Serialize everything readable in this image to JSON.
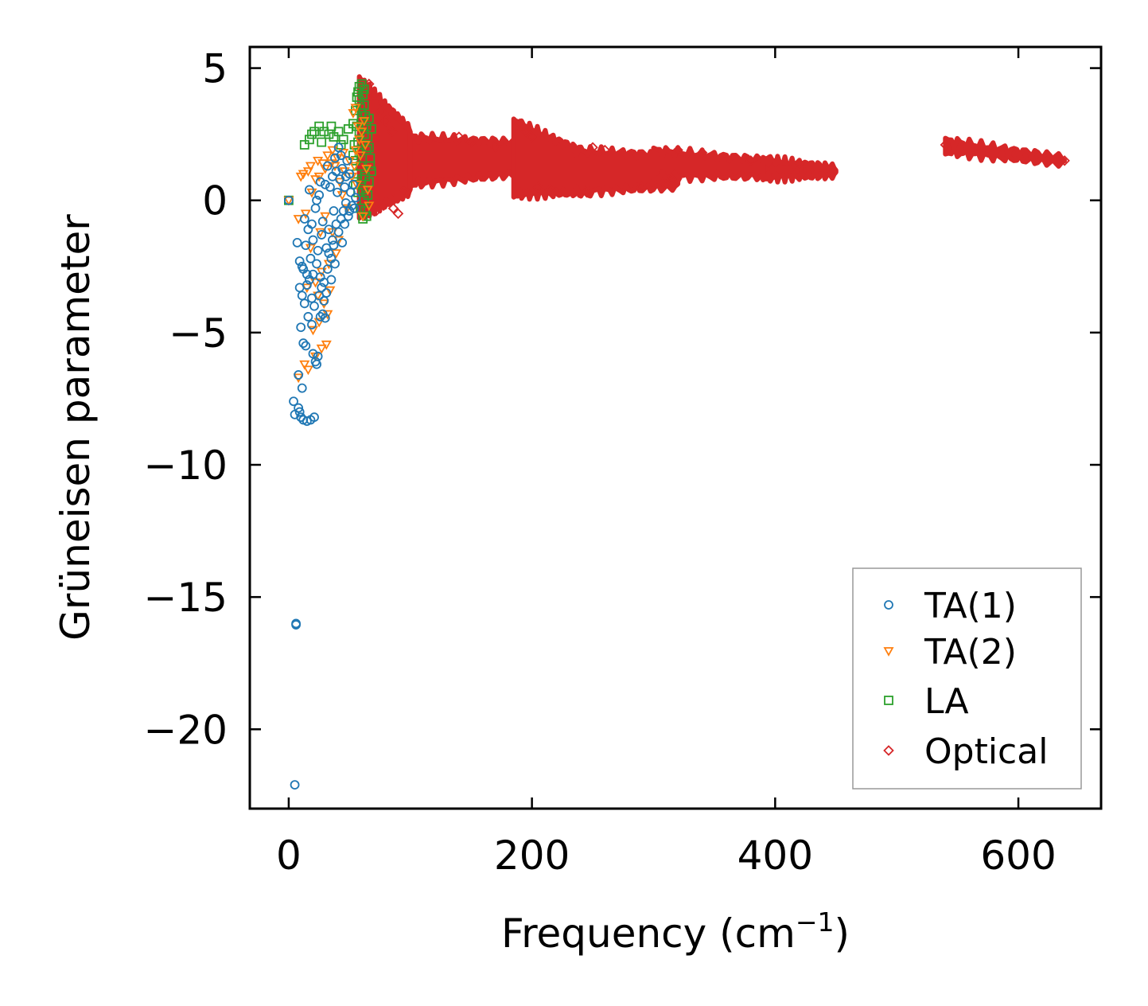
{
  "chart_data": {
    "type": "scatter",
    "title": "",
    "xlabel": "Frequency (cm",
    "xlabel_sup": "−1",
    "xlabel_end": ")",
    "ylabel": "Grüneisen parameter",
    "xlim": [
      -32,
      668
    ],
    "ylim": [
      -23.0,
      5.8
    ],
    "xticks": [
      0,
      200,
      400,
      600
    ],
    "xtick_labels": [
      "0",
      "200",
      "400",
      "600"
    ],
    "yticks": [
      5,
      0,
      -5,
      -10,
      -15,
      -20
    ],
    "ytick_labels": [
      "5",
      "0",
      "−5",
      "−10",
      "−15",
      "−20"
    ],
    "grid": false,
    "legend_position": "lower-right",
    "series": [
      {
        "name": "TA(1)",
        "marker": "circle",
        "color": "#1f77b4",
        "points": [
          [
            0,
            0
          ],
          [
            5,
            -22.1
          ],
          [
            6,
            -16
          ],
          [
            6,
            -16.05
          ],
          [
            4,
            -7.6
          ],
          [
            5,
            -8.1
          ],
          [
            8,
            -6.6
          ],
          [
            9,
            -8.0
          ],
          [
            10,
            -8.2
          ],
          [
            12,
            -8.3
          ],
          [
            15,
            -8.35
          ],
          [
            18,
            -8.3
          ],
          [
            21,
            -8.2
          ],
          [
            11,
            -7.1
          ],
          [
            8,
            -7.85
          ],
          [
            10,
            -4.8
          ],
          [
            12,
            -5.4
          ],
          [
            14,
            -5.5
          ],
          [
            16,
            -4.4
          ],
          [
            19,
            -4.7
          ],
          [
            20,
            -5.8
          ],
          [
            22,
            -6.1
          ],
          [
            23,
            -6.2
          ],
          [
            24,
            -5.9
          ],
          [
            26,
            -4.4
          ],
          [
            28,
            -4.3
          ],
          [
            30,
            -4.45
          ],
          [
            9,
            -3.3
          ],
          [
            11,
            -3.6
          ],
          [
            13,
            -3.9
          ],
          [
            15,
            -3.2
          ],
          [
            17,
            -3.0
          ],
          [
            19,
            -3.7
          ],
          [
            21,
            -4.0
          ],
          [
            25,
            -3.6
          ],
          [
            27,
            -3.3
          ],
          [
            7,
            -1.6
          ],
          [
            9,
            -2.3
          ],
          [
            12,
            -2.6
          ],
          [
            14,
            -1.7
          ],
          [
            16,
            -1.1
          ],
          [
            18,
            -2.2
          ],
          [
            20,
            -2.8
          ],
          [
            23,
            -2.4
          ],
          [
            26,
            -2.9
          ],
          [
            29,
            -3.1
          ],
          [
            32,
            -2.6
          ],
          [
            35,
            -2.2
          ],
          [
            38,
            -2.4
          ],
          [
            31,
            -1.8
          ],
          [
            33,
            -1.1
          ],
          [
            36,
            -1.5
          ],
          [
            39,
            -0.9
          ],
          [
            41,
            -1.2
          ],
          [
            43,
            -0.7
          ],
          [
            45,
            -0.4
          ],
          [
            47,
            -0.1
          ],
          [
            49,
            -0.6
          ],
          [
            51,
            0.3
          ],
          [
            52,
            -0.2
          ],
          [
            37,
            -0.4
          ],
          [
            40,
            0.3
          ],
          [
            42,
            0.8
          ],
          [
            44,
            1.2
          ],
          [
            46,
            0.5
          ],
          [
            48,
            1.5
          ],
          [
            50,
            1.0
          ],
          [
            53,
            0.6
          ],
          [
            55,
            0.1
          ],
          [
            34,
            0.5
          ],
          [
            38,
            1.6
          ],
          [
            41,
            2.0
          ],
          [
            43,
            1.7
          ],
          [
            22,
            -0.3
          ],
          [
            25,
            0.2
          ],
          [
            28,
            -0.8
          ],
          [
            30,
            0.6
          ],
          [
            17,
            0.4
          ],
          [
            20,
            -1.5
          ],
          [
            24,
            -1.9
          ],
          [
            27,
            -1.3
          ],
          [
            44,
            -1.6
          ],
          [
            46,
            -0.9
          ],
          [
            33,
            -2.0
          ],
          [
            35,
            -3.0
          ],
          [
            29,
            -3.8
          ],
          [
            31,
            -3.5
          ],
          [
            36,
            0.9
          ],
          [
            39,
            1.1
          ],
          [
            47,
            0.9
          ],
          [
            50,
            -0.4
          ],
          [
            54,
            -0.3
          ],
          [
            19,
            -0.9
          ],
          [
            23,
            0.0
          ],
          [
            26,
            0.7
          ],
          [
            32,
            1.3
          ],
          [
            13,
            -0.7
          ],
          [
            11,
            -2.5
          ],
          [
            15,
            -2.8
          ],
          [
            37,
            -1.7
          ]
        ]
      },
      {
        "name": "TA(2)",
        "marker": "triangle-down",
        "color": "#ff7f0e",
        "points": [
          [
            0,
            0
          ],
          [
            8,
            -6.7
          ],
          [
            13,
            -6.2
          ],
          [
            16,
            -6.4
          ],
          [
            22,
            -5.9
          ],
          [
            27,
            -5.6
          ],
          [
            31,
            -5.45
          ],
          [
            20,
            -4.9
          ],
          [
            25,
            -4.6
          ],
          [
            29,
            -3.9
          ],
          [
            32,
            -4.3
          ],
          [
            22,
            -3.1
          ],
          [
            27,
            -2.7
          ],
          [
            33,
            -2.4
          ],
          [
            8,
            -0.7
          ],
          [
            14,
            -0.5
          ],
          [
            19,
            0.3
          ],
          [
            25,
            0.9
          ],
          [
            30,
            1.2
          ],
          [
            35,
            1.4
          ],
          [
            40,
            1.6
          ],
          [
            45,
            1.8
          ],
          [
            50,
            1.5
          ],
          [
            55,
            1.9
          ],
          [
            58,
            2.3
          ],
          [
            60,
            2.6
          ],
          [
            62,
            3.0
          ],
          [
            63,
            2.1
          ],
          [
            57,
            2.8
          ],
          [
            64,
            1.2
          ],
          [
            65,
            0.4
          ],
          [
            66,
            -0.2
          ],
          [
            61,
            -0.6
          ],
          [
            56,
            0.6
          ],
          [
            52,
            0.9
          ],
          [
            48,
            -0.3
          ],
          [
            44,
            0.2
          ],
          [
            10,
            0.9
          ],
          [
            12,
            1.0
          ],
          [
            16,
            1.1
          ],
          [
            18,
            1.3
          ],
          [
            22,
            0.8
          ],
          [
            24,
            1.5
          ],
          [
            28,
            1.4
          ],
          [
            32,
            1.7
          ],
          [
            36,
            1.9
          ],
          [
            38,
            1.3
          ],
          [
            42,
            0.7
          ],
          [
            46,
            1.1
          ],
          [
            54,
            1.3
          ],
          [
            59,
            1.7
          ],
          [
            53,
            3.3
          ],
          [
            55,
            3.5
          ],
          [
            36,
            -1.2
          ],
          [
            39,
            -2.0
          ],
          [
            41,
            -1.5
          ],
          [
            34,
            -3.4
          ],
          [
            24,
            -3.6
          ],
          [
            15,
            -3.3
          ],
          [
            18,
            -1.8
          ],
          [
            26,
            -1.2
          ],
          [
            30,
            -0.6
          ]
        ]
      },
      {
        "name": "LA",
        "marker": "square",
        "color": "#2ca02c",
        "points": [
          [
            0,
            0
          ],
          [
            13,
            2.1
          ],
          [
            17,
            2.3
          ],
          [
            21,
            2.6
          ],
          [
            25,
            2.8
          ],
          [
            29,
            2.6
          ],
          [
            33,
            2.5
          ],
          [
            37,
            2.4
          ],
          [
            41,
            2.6
          ],
          [
            45,
            2.3
          ],
          [
            49,
            2.7
          ],
          [
            19,
            2.5
          ],
          [
            27,
            2.2
          ],
          [
            35,
            2.8
          ],
          [
            43,
            2.1
          ],
          [
            53,
            2.9
          ],
          [
            55,
            3.4
          ],
          [
            56,
            3.9
          ],
          [
            57,
            4.1
          ],
          [
            58,
            4.3
          ],
          [
            59,
            3.5
          ],
          [
            60,
            4.4
          ],
          [
            61,
            4.0
          ],
          [
            62,
            3.6
          ],
          [
            63,
            3.2
          ],
          [
            64,
            2.8
          ],
          [
            65,
            2.4
          ],
          [
            66,
            2.0
          ],
          [
            67,
            1.6
          ],
          [
            68,
            1.1
          ],
          [
            57,
            2.2
          ],
          [
            58,
            1.8
          ],
          [
            59,
            1.3
          ],
          [
            60,
            0.8
          ],
          [
            61,
            0.4
          ],
          [
            62,
            0.0
          ],
          [
            63,
            -0.4
          ],
          [
            64,
            -0.6
          ],
          [
            65,
            0.2
          ],
          [
            66,
            0.7
          ],
          [
            67,
            1.3
          ],
          [
            56,
            1.0
          ],
          [
            55,
            1.5
          ],
          [
            54,
            2.1
          ],
          [
            53,
            1.7
          ],
          [
            58,
            2.6
          ],
          [
            60,
            3.0
          ],
          [
            62,
            2.5
          ],
          [
            64,
            1.9
          ],
          [
            66,
            3.1
          ],
          [
            68,
            2.7
          ],
          [
            59,
            -0.3
          ],
          [
            61,
            -0.7
          ],
          [
            63,
            0.9
          ],
          [
            57,
            0.3
          ],
          [
            55,
            0.6
          ],
          [
            58,
            3.8
          ],
          [
            60,
            3.3
          ],
          [
            62,
            4.2
          ],
          [
            56,
            2.8
          ]
        ]
      },
      {
        "name": "Optical",
        "marker": "diamond",
        "color": "#d62728",
        "bands": [
          {
            "x_start": 58,
            "x_end": 100,
            "y_mid_start": 2.0,
            "y_mid_end": 1.5,
            "half_width_start": 2.6,
            "half_width_end": 1.2
          },
          {
            "x_start": 100,
            "x_end": 190,
            "y_mid_start": 1.5,
            "y_mid_end": 1.6,
            "half_width_start": 0.9,
            "half_width_end": 0.6
          },
          {
            "x_start": 185,
            "x_end": 250,
            "y_mid_start": 1.6,
            "y_mid_end": 1.0,
            "half_width_start": 1.4,
            "half_width_end": 0.7
          },
          {
            "x_start": 230,
            "x_end": 320,
            "y_mid_start": 1.1,
            "y_mid_end": 1.1,
            "half_width_start": 0.8,
            "half_width_end": 0.6
          },
          {
            "x_start": 300,
            "x_end": 400,
            "y_mid_start": 1.4,
            "y_mid_end": 1.2,
            "half_width_start": 0.5,
            "half_width_end": 0.3
          },
          {
            "x_start": 390,
            "x_end": 450,
            "y_mid_start": 1.2,
            "y_mid_end": 1.1,
            "half_width_start": 0.35,
            "half_width_end": 0.15
          },
          {
            "x_start": 540,
            "x_end": 638,
            "y_mid_start": 2.05,
            "y_mid_end": 1.5,
            "half_width_start": 0.22,
            "half_width_end": 0.12
          }
        ],
        "points": [
          [
            66,
            4.4
          ],
          [
            70,
            4.0
          ],
          [
            75,
            3.4
          ],
          [
            80,
            3.0
          ],
          [
            85,
            2.6
          ],
          [
            72,
            -0.4
          ],
          [
            78,
            -0.2
          ],
          [
            86,
            -0.3
          ],
          [
            90,
            -0.5
          ],
          [
            95,
            0.4
          ],
          [
            140,
            2.4
          ],
          [
            150,
            2.2
          ],
          [
            170,
            2.0
          ],
          [
            190,
            2.9
          ],
          [
            195,
            2.6
          ],
          [
            200,
            2.4
          ],
          [
            205,
            0.5
          ],
          [
            215,
            0.4
          ],
          [
            245,
            0.3
          ],
          [
            250,
            2.0
          ],
          [
            260,
            1.9
          ],
          [
            290,
            0.5
          ],
          [
            310,
            0.6
          ],
          [
            315,
            0.8
          ],
          [
            320,
            1.9
          ],
          [
            340,
            1.8
          ],
          [
            380,
            1.5
          ],
          [
            420,
            1.4
          ],
          [
            447,
            1.1
          ],
          [
            540,
            2.1
          ],
          [
            638,
            1.5
          ]
        ]
      }
    ]
  }
}
